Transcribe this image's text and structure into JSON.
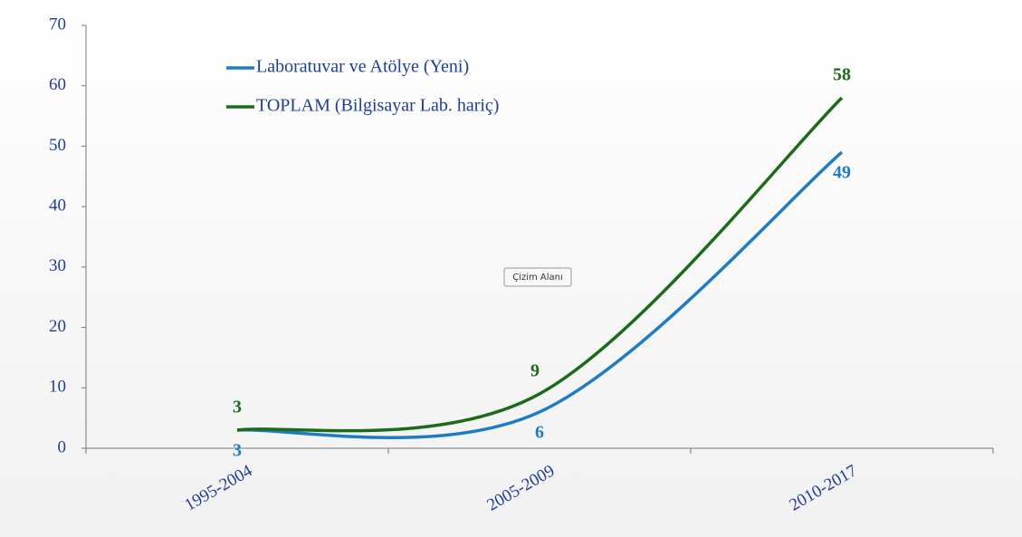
{
  "chart_data": {
    "type": "line",
    "smooth": true,
    "categories": [
      "1995-2004",
      "2005-2009",
      "2010-2017"
    ],
    "series": [
      {
        "name": "Laboratuvar ve Atölye (Yeni)",
        "color": "#1f7bc4",
        "values": [
          3,
          6,
          49
        ]
      },
      {
        "name": "TOPLAM (Bilgisayar Lab. hariç)",
        "color": "#1b6b1b",
        "values": [
          3,
          9,
          58
        ]
      }
    ],
    "ylim": [
      0,
      70
    ],
    "yticks": [
      0,
      10,
      20,
      30,
      40,
      50,
      60,
      70
    ],
    "grid": false,
    "data_labels": true,
    "tooltip": "Çizim Alanı"
  }
}
